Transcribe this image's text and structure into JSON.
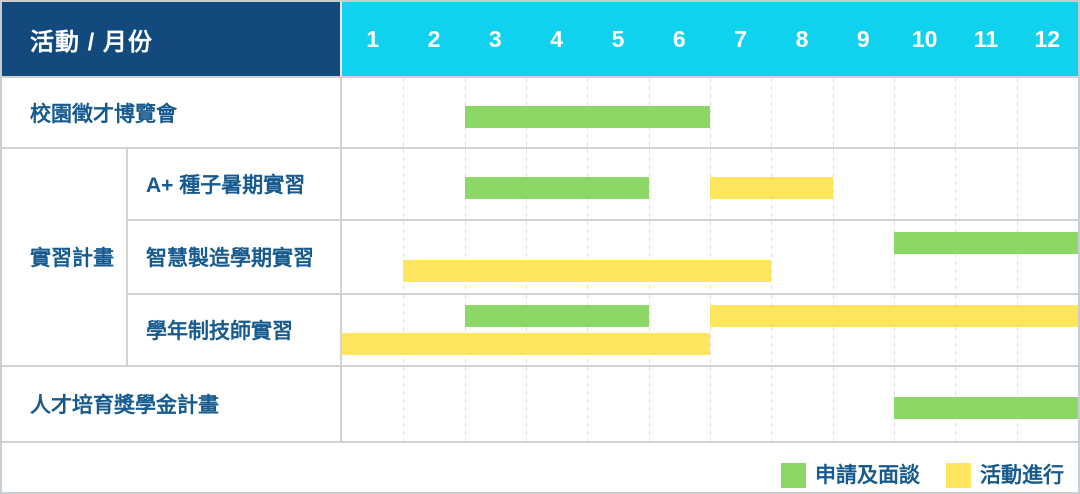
{
  "header": {
    "corner_label": "活動 / 月份",
    "months": [
      "1",
      "2",
      "3",
      "4",
      "5",
      "6",
      "7",
      "8",
      "9",
      "10",
      "11",
      "12"
    ]
  },
  "group": {
    "label": "實習計畫",
    "start_row": 2,
    "end_row": 4
  },
  "rows": [
    {
      "label": "校園徵才博覽會",
      "indent": false,
      "tracks": [
        [
          {
            "phase": "apply",
            "start": 3,
            "end": 7
          }
        ]
      ]
    },
    {
      "label": "A+ 種子暑期實習",
      "indent": true,
      "tracks": [
        [
          {
            "phase": "apply",
            "start": 3,
            "end": 6
          },
          {
            "phase": "active",
            "start": 7,
            "end": 9
          }
        ]
      ]
    },
    {
      "label": "智慧製造學期實習",
      "indent": true,
      "tracks": [
        [
          {
            "phase": "apply",
            "start": 10,
            "end": 13
          }
        ],
        [
          {
            "phase": "active",
            "start": 2,
            "end": 8
          }
        ]
      ]
    },
    {
      "label": "學年制技師實習",
      "indent": true,
      "tracks": [
        [
          {
            "phase": "apply",
            "start": 3,
            "end": 6
          },
          {
            "phase": "active",
            "start": 7,
            "end": 13
          }
        ],
        [
          {
            "phase": "active",
            "start": 1,
            "end": 7
          }
        ]
      ]
    },
    {
      "label": "人才培育獎學金計畫",
      "indent": false,
      "tracks": [
        [
          {
            "phase": "apply",
            "start": 10,
            "end": 13
          }
        ]
      ]
    }
  ],
  "legend": {
    "items": [
      {
        "phase": "apply",
        "label": "申請及面談"
      },
      {
        "phase": "active",
        "label": "活動進行"
      }
    ]
  },
  "colors": {
    "apply": "#8cd765",
    "active": "#ffe45e",
    "header_bg": "#134a7e",
    "month_bg": "#10d2ee",
    "label_text": "#175a8e",
    "grid_line": "#d2d2d2"
  },
  "chart_data": {
    "type": "bar",
    "subtype": "gantt-schedule",
    "title": "活動 / 月份",
    "xlabel": "月份",
    "x_ticks": [
      "1",
      "2",
      "3",
      "4",
      "5",
      "6",
      "7",
      "8",
      "9",
      "10",
      "11",
      "12"
    ],
    "xlim": [
      1,
      12
    ],
    "grid": "vertical-dashed",
    "legend_position": "bottom-right",
    "legend": [
      {
        "label": "申請及面談",
        "color": "#8cd765"
      },
      {
        "label": "活動進行",
        "color": "#ffe45e"
      }
    ],
    "series": [
      {
        "activity": "校園徵才博覽會",
        "group": null,
        "phases": [
          {
            "phase": "申請及面談",
            "start_month": 3,
            "end_month": 6
          }
        ]
      },
      {
        "activity": "A+ 種子暑期實習",
        "group": "實習計畫",
        "phases": [
          {
            "phase": "申請及面談",
            "start_month": 3,
            "end_month": 5
          },
          {
            "phase": "活動進行",
            "start_month": 7,
            "end_month": 8
          }
        ]
      },
      {
        "activity": "智慧製造學期實習",
        "group": "實習計畫",
        "phases": [
          {
            "phase": "申請及面談",
            "start_month": 10,
            "end_month": 12
          },
          {
            "phase": "活動進行",
            "start_month": 2,
            "end_month": 7
          }
        ]
      },
      {
        "activity": "學年制技師實習",
        "group": "實習計畫",
        "phases": [
          {
            "phase": "申請及面談",
            "start_month": 3,
            "end_month": 5
          },
          {
            "phase": "活動進行",
            "start_month": 7,
            "end_month": 12
          },
          {
            "phase": "活動進行",
            "start_month": 1,
            "end_month": 6
          }
        ]
      },
      {
        "activity": "人才培育獎學金計畫",
        "group": null,
        "phases": [
          {
            "phase": "申請及面談",
            "start_month": 10,
            "end_month": 12
          }
        ]
      }
    ]
  }
}
